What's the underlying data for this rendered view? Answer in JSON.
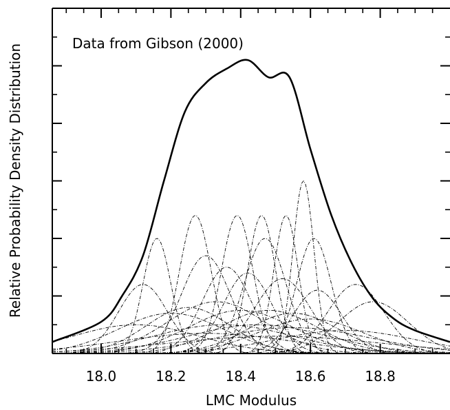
{
  "chart_data": {
    "type": "line",
    "title": "",
    "annotation": "Data from Gibson (2000)",
    "xlabel": "LMC Modulus",
    "ylabel": "Relative Probability Density Distribution",
    "xlim": [
      17.86,
      19.0
    ],
    "ylim": [
      0,
      1.2
    ],
    "x_ticks": [
      18.0,
      18.2,
      18.4,
      18.6,
      18.8
    ],
    "x_tick_labels": [
      "18.0",
      "18.2",
      "18.4",
      "18.6",
      "18.8"
    ],
    "y_ticks": [
      0.2,
      0.4,
      0.6,
      0.8,
      1.0
    ],
    "y_tick_labels_shown": false,
    "grid": false,
    "legend": "none",
    "total_series": {
      "name": "",
      "x": [
        17.86,
        18.0,
        18.06,
        18.12,
        18.18,
        18.24,
        18.3,
        18.36,
        18.42,
        18.48,
        18.54,
        18.6,
        18.66,
        18.72,
        18.78,
        18.84,
        18.9,
        19.0
      ],
      "y": [
        0.04,
        0.11,
        0.2,
        0.34,
        0.6,
        0.84,
        0.94,
        0.99,
        1.02,
        0.96,
        0.96,
        0.71,
        0.48,
        0.31,
        0.19,
        0.12,
        0.08,
        0.04
      ]
    },
    "component_gaussians": [
      {
        "mu": 18.16,
        "sigma": 0.04,
        "amp": 0.4
      },
      {
        "mu": 18.27,
        "sigma": 0.045,
        "amp": 0.48
      },
      {
        "mu": 18.39,
        "sigma": 0.045,
        "amp": 0.48
      },
      {
        "mu": 18.46,
        "sigma": 0.04,
        "amp": 0.48
      },
      {
        "mu": 18.53,
        "sigma": 0.035,
        "amp": 0.48
      },
      {
        "mu": 18.58,
        "sigma": 0.03,
        "amp": 0.6
      },
      {
        "mu": 18.47,
        "sigma": 0.06,
        "amp": 0.4
      },
      {
        "mu": 18.61,
        "sigma": 0.05,
        "amp": 0.4
      },
      {
        "mu": 18.12,
        "sigma": 0.07,
        "amp": 0.24
      },
      {
        "mu": 18.3,
        "sigma": 0.07,
        "amp": 0.34
      },
      {
        "mu": 18.36,
        "sigma": 0.07,
        "amp": 0.3
      },
      {
        "mu": 18.42,
        "sigma": 0.07,
        "amp": 0.28
      },
      {
        "mu": 18.52,
        "sigma": 0.08,
        "amp": 0.26
      },
      {
        "mu": 18.62,
        "sigma": 0.07,
        "amp": 0.22
      },
      {
        "mu": 18.73,
        "sigma": 0.08,
        "amp": 0.24
      },
      {
        "mu": 18.78,
        "sigma": 0.1,
        "amp": 0.18
      },
      {
        "mu": 18.25,
        "sigma": 0.12,
        "amp": 0.16
      },
      {
        "mu": 18.33,
        "sigma": 0.14,
        "amp": 0.18
      },
      {
        "mu": 18.4,
        "sigma": 0.15,
        "amp": 0.15
      },
      {
        "mu": 18.48,
        "sigma": 0.14,
        "amp": 0.15
      },
      {
        "mu": 18.55,
        "sigma": 0.13,
        "amp": 0.14
      },
      {
        "mu": 18.6,
        "sigma": 0.15,
        "amp": 0.12
      },
      {
        "mu": 18.2,
        "sigma": 0.15,
        "amp": 0.14
      },
      {
        "mu": 18.1,
        "sigma": 0.18,
        "amp": 0.1
      },
      {
        "mu": 18.35,
        "sigma": 0.2,
        "amp": 0.1
      },
      {
        "mu": 18.45,
        "sigma": 0.2,
        "amp": 0.1
      },
      {
        "mu": 18.55,
        "sigma": 0.22,
        "amp": 0.09
      },
      {
        "mu": 18.7,
        "sigma": 0.2,
        "amp": 0.08
      },
      {
        "mu": 18.3,
        "sigma": 0.25,
        "amp": 0.07
      },
      {
        "mu": 18.5,
        "sigma": 0.3,
        "amp": 0.06
      }
    ]
  }
}
